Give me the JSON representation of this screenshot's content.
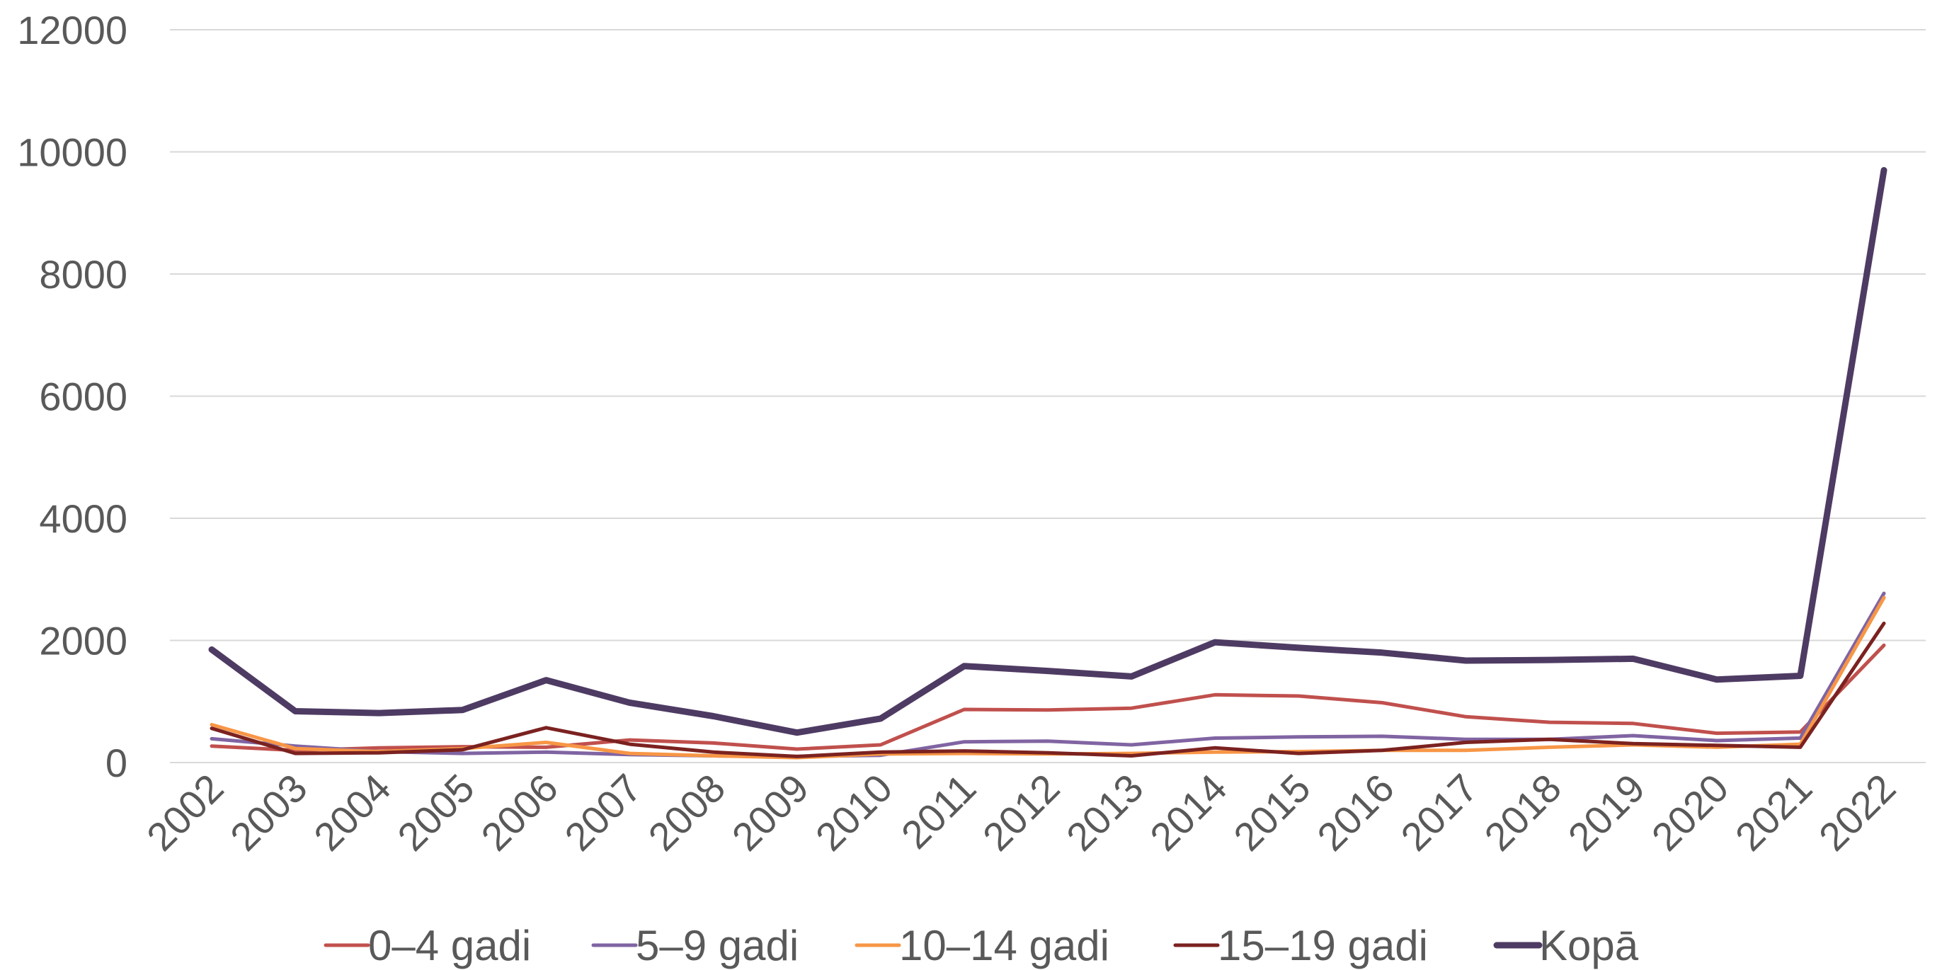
{
  "chart_data": {
    "type": "line",
    "title": "",
    "xlabel": "",
    "ylabel": "",
    "categories": [
      "2002",
      "2003",
      "2004",
      "2005",
      "2006",
      "2007",
      "2008",
      "2009",
      "2010",
      "2011",
      "2012",
      "2013",
      "2014",
      "2015",
      "2016",
      "2017",
      "2018",
      "2019",
      "2020",
      "2021",
      "2022"
    ],
    "ylim": [
      0,
      12000
    ],
    "yticks": [
      0,
      2000,
      4000,
      6000,
      8000,
      10000,
      12000
    ],
    "grid": true,
    "legend_position": "bottom",
    "series": [
      {
        "name": "0–4 gadi",
        "color": "#c0504d",
        "values": [
          270,
          200,
          240,
          260,
          250,
          370,
          320,
          220,
          290,
          870,
          860,
          890,
          1110,
          1090,
          980,
          750,
          660,
          640,
          480,
          500,
          1920
        ]
      },
      {
        "name": "5–9 gadi",
        "color": "#8064a2",
        "values": [
          390,
          270,
          180,
          150,
          170,
          130,
          110,
          100,
          120,
          340,
          350,
          290,
          400,
          420,
          430,
          380,
          380,
          440,
          360,
          400,
          2770
        ]
      },
      {
        "name": "10–14 gadi",
        "color": "#f79646",
        "values": [
          620,
          230,
          180,
          230,
          330,
          150,
          110,
          80,
          140,
          150,
          140,
          150,
          170,
          180,
          200,
          200,
          250,
          290,
          250,
          300,
          2700
        ]
      },
      {
        "name": "15–19 gadi",
        "color": "#7b2220",
        "values": [
          560,
          150,
          160,
          210,
          570,
          300,
          170,
          100,
          170,
          190,
          160,
          110,
          240,
          150,
          200,
          330,
          380,
          310,
          280,
          250,
          2280
        ]
      },
      {
        "name": "Kopā",
        "color": "#4e3b63",
        "values": [
          1850,
          840,
          810,
          860,
          1350,
          980,
          760,
          490,
          720,
          1580,
          1500,
          1410,
          1970,
          1880,
          1800,
          1670,
          1680,
          1700,
          1360,
          1420,
          9700
        ]
      }
    ]
  }
}
